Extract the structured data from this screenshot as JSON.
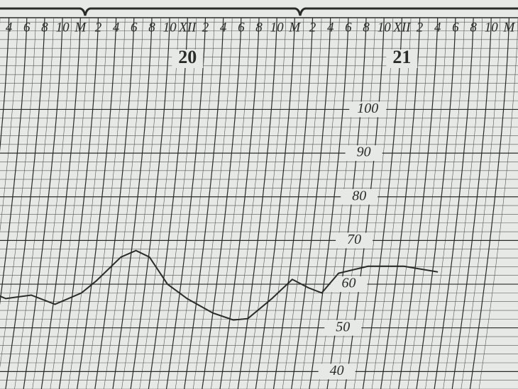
{
  "chart_data": {
    "type": "line",
    "xlim": [
      15,
      73
    ],
    "xticks": [
      {
        "value": 16,
        "label": "4"
      },
      {
        "value": 18,
        "label": "6"
      },
      {
        "value": 20,
        "label": "8"
      },
      {
        "value": 22,
        "label": "10"
      },
      {
        "value": 24,
        "label": "M"
      },
      {
        "value": 26,
        "label": "2"
      },
      {
        "value": 28,
        "label": "4"
      },
      {
        "value": 30,
        "label": "6"
      },
      {
        "value": 32,
        "label": "8"
      },
      {
        "value": 34,
        "label": "10"
      },
      {
        "value": 36,
        "label": "XII"
      },
      {
        "value": 38,
        "label": "2"
      },
      {
        "value": 40,
        "label": "4"
      },
      {
        "value": 42,
        "label": "6"
      },
      {
        "value": 44,
        "label": "8"
      },
      {
        "value": 46,
        "label": "10"
      },
      {
        "value": 48,
        "label": "M"
      },
      {
        "value": 50,
        "label": "2"
      },
      {
        "value": 52,
        "label": "4"
      },
      {
        "value": 54,
        "label": "6"
      },
      {
        "value": 56,
        "label": "8"
      },
      {
        "value": 58,
        "label": "10"
      },
      {
        "value": 60,
        "label": "XII"
      },
      {
        "value": 62,
        "label": "2"
      },
      {
        "value": 64,
        "label": "4"
      },
      {
        "value": 66,
        "label": "6"
      },
      {
        "value": 68,
        "label": "8"
      },
      {
        "value": 70,
        "label": "10"
      },
      {
        "value": 72,
        "label": "M"
      }
    ],
    "ylim": [
      36,
      121
    ],
    "yticks": [
      40,
      50,
      60,
      70,
      80,
      90,
      100
    ],
    "annotations": [
      {
        "text": "20",
        "x": 36
      },
      {
        "text": "21",
        "x": 60
      }
    ],
    "color": "#2a2a2a",
    "x": [
      16.5,
      18.6,
      21.4,
      24.2,
      27,
      28.5,
      30.9,
      32.5,
      34.1,
      36.5,
      38.9,
      42,
      44.4,
      46,
      48.4,
      50.4,
      52.3,
      53.9,
      55.5,
      58.7,
      62.7,
      66.6
    ],
    "values": [
      58.4,
      56.7,
      57.5,
      55.4,
      58,
      60.8,
      66.2,
      67.7,
      66.2,
      60,
      56.7,
      53.4,
      51.8,
      52.1,
      56.7,
      61.1,
      59.2,
      58,
      62.5,
      64.1,
      64.1,
      62.8
    ]
  }
}
